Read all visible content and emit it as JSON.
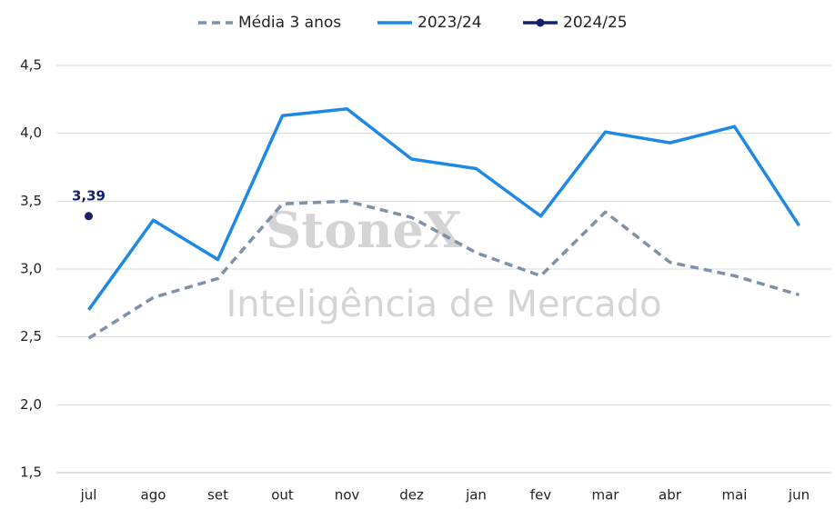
{
  "chart_data": {
    "type": "line",
    "watermark": [
      "StoneX",
      "Inteligência de Mercado"
    ],
    "categories": [
      "jul",
      "ago",
      "set",
      "out",
      "nov",
      "dez",
      "jan",
      "fev",
      "mar",
      "abr",
      "mai",
      "jun"
    ],
    "series": [
      {
        "name": "Média 3 anos",
        "color": "#7f90aa",
        "style": "dashed",
        "values": [
          2.49,
          2.79,
          2.93,
          3.48,
          3.5,
          3.38,
          3.12,
          2.95,
          3.42,
          3.05,
          2.95,
          2.81
        ]
      },
      {
        "name": "2023/24",
        "color": "#1e88e5",
        "style": "solid",
        "values": [
          2.7,
          3.36,
          3.07,
          4.13,
          4.18,
          3.81,
          3.74,
          3.39,
          4.01,
          3.93,
          4.05,
          3.32
        ]
      },
      {
        "name": "2024/25",
        "color": "#14206b",
        "style": "point",
        "values": [
          3.39,
          null,
          null,
          null,
          null,
          null,
          null,
          null,
          null,
          null,
          null,
          null
        ],
        "value_labels": [
          "3,39",
          null,
          null,
          null,
          null,
          null,
          null,
          null,
          null,
          null,
          null,
          null
        ]
      }
    ],
    "ylim": [
      1.5,
      4.5
    ],
    "yticks": [
      {
        "value": 1.5,
        "label": "1,5"
      },
      {
        "value": 2.0,
        "label": "2,0"
      },
      {
        "value": 2.5,
        "label": "2,5"
      },
      {
        "value": 3.0,
        "label": "3,0"
      },
      {
        "value": 3.5,
        "label": "3,5"
      },
      {
        "value": 4.0,
        "label": "4,0"
      },
      {
        "value": 4.5,
        "label": "4,5"
      }
    ],
    "grid": true,
    "legend": "top"
  }
}
